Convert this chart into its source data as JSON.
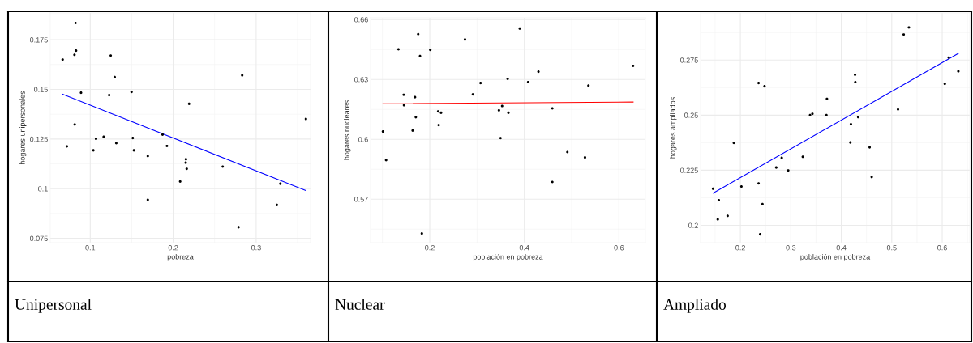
{
  "chart_data": [
    {
      "type": "scatter",
      "xlabel": "pobreza",
      "ylabel": "hogares unipersonales",
      "xlim": [
        0.0518,
        0.3656
      ],
      "ylim": [
        0.0728,
        0.1885
      ],
      "xticks": [
        0.1,
        0.2,
        0.3
      ],
      "yticks": [
        0.075,
        0.1,
        0.125,
        0.15,
        0.175
      ],
      "grid": true,
      "annotations": [
        "Unipersonal"
      ],
      "series": [
        {
          "marker": "circle",
          "color": "#000000",
          "x": [
            0.0823,
            0.0667,
            0.081,
            0.0829,
            0.1247,
            0.1295,
            0.0889,
            0.1228,
            0.1498,
            0.2192,
            0.2832,
            0.36,
            0.0813,
            0.0718,
            0.107,
            0.1162,
            0.1038,
            0.1314,
            0.1513,
            0.1526,
            0.1694,
            0.1872,
            0.1925,
            0.2154,
            0.2151,
            0.2163,
            0.2084,
            0.1694,
            0.2597,
            0.3292,
            0.325,
            0.2788
          ],
          "values": [
            0.1834,
            0.165,
            0.1674,
            0.1695,
            0.167,
            0.1562,
            0.1483,
            0.1471,
            0.1487,
            0.1427,
            0.1571,
            0.1351,
            0.1323,
            0.1213,
            0.1251,
            0.1261,
            0.1193,
            0.1229,
            0.1255,
            0.1193,
            0.1164,
            0.1272,
            0.1215,
            0.1148,
            0.1131,
            0.11,
            0.1036,
            0.0944,
            0.1111,
            0.1025,
            0.0918,
            0.0806
          ]
        },
        {
          "type": "line",
          "color": "#0000ff",
          "x": [
            0.0667,
            0.36
          ],
          "values": [
            0.1476,
            0.0991
          ]
        }
      ]
    },
    {
      "type": "scatter",
      "xlabel": "población en pobreza",
      "ylabel": "hogares nucleares",
      "xlim": [
        0.0748,
        0.656
      ],
      "ylim": [
        0.5482,
        0.6609
      ],
      "xticks": [
        0.2,
        0.4,
        0.6
      ],
      "yticks": [
        0.57,
        0.6,
        0.63,
        0.66
      ],
      "grid": true,
      "annotations": [
        "Nuclear"
      ],
      "series": [
        {
          "marker": "circle",
          "color": "#000000",
          "x": [
            0.101,
            0.1077,
            0.1338,
            0.1755,
            0.1794,
            0.2011,
            0.2745,
            0.3903,
            0.1449,
            0.1455,
            0.1688,
            0.1705,
            0.1638,
            0.2178,
            0.2239,
            0.2189,
            0.2912,
            0.3074,
            0.3647,
            0.3463,
            0.353,
            0.3663,
            0.3497,
            0.4081,
            0.4298,
            0.4592,
            0.4592,
            0.491,
            0.5282,
            0.5355,
            0.63,
            0.1833
          ],
          "values": [
            0.6039,
            0.5896,
            0.6451,
            0.6527,
            0.6417,
            0.6448,
            0.65,
            0.6555,
            0.6223,
            0.6171,
            0.6211,
            0.6111,
            0.6044,
            0.614,
            0.6133,
            0.6071,
            0.6225,
            0.6282,
            0.6303,
            0.6145,
            0.6167,
            0.6133,
            0.6006,
            0.6287,
            0.6339,
            0.6155,
            0.5786,
            0.5936,
            0.5909,
            0.6269,
            0.6368,
            0.5528
          ]
        },
        {
          "type": "line",
          "color": "#ff0000",
          "x": [
            0.101,
            0.63
          ],
          "values": [
            0.6178,
            0.6187
          ]
        }
      ]
    },
    {
      "type": "scatter",
      "xlabel": "población en pobreza",
      "ylabel": "hogares ampliados",
      "xlim": [
        0.1211,
        0.6546
      ],
      "ylim": [
        0.1921,
        0.2964
      ],
      "xticks": [
        0.2,
        0.3,
        0.4,
        0.5,
        0.6
      ],
      "yticks": [
        0.2,
        0.225,
        0.25,
        0.275
      ],
      "grid": true,
      "annotations": [
        "Ampliado"
      ],
      "series": [
        {
          "marker": "circle",
          "color": "#000000",
          "x": [
            0.1459,
            0.1572,
            0.1552,
            0.1747,
            0.1871,
            0.2021,
            0.2361,
            0.2438,
            0.2392,
            0.2361,
            0.2479,
            0.2711,
            0.282,
            0.2948,
            0.3237,
            0.3381,
            0.3428,
            0.3706,
            0.3716,
            0.4273,
            0.4278,
            0.4191,
            0.418,
            0.4335,
            0.4562,
            0.4603,
            0.5124,
            0.5237,
            0.534,
            0.6052,
            0.6129,
            0.632
          ],
          "values": [
            0.2166,
            0.2114,
            0.2027,
            0.2043,
            0.2374,
            0.2176,
            0.219,
            0.2096,
            0.1959,
            0.2646,
            0.2631,
            0.2262,
            0.2306,
            0.2249,
            0.2311,
            0.25,
            0.2506,
            0.25,
            0.2574,
            0.2683,
            0.265,
            0.2459,
            0.2376,
            0.2491,
            0.2354,
            0.2219,
            0.2526,
            0.2866,
            0.2898,
            0.2642,
            0.2761,
            0.2699
          ]
        },
        {
          "type": "line",
          "color": "#0000ff",
          "x": [
            0.1459,
            0.632
          ],
          "values": [
            0.2146,
            0.278
          ]
        }
      ]
    }
  ]
}
